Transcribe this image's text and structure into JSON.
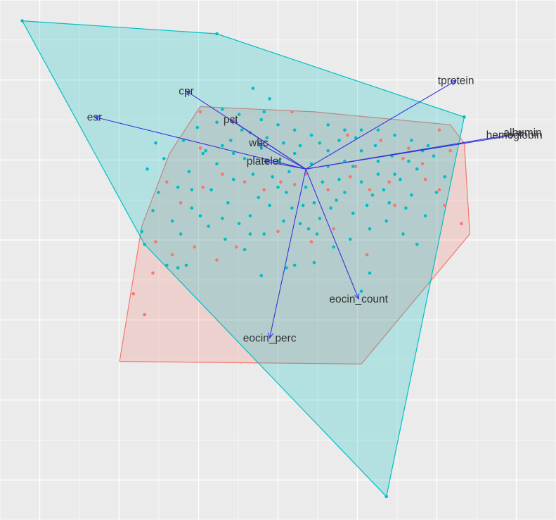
{
  "chart_data": {
    "type": "scatter",
    "subtype": "pca-biplot",
    "title": "",
    "xlabel": "",
    "ylabel": "",
    "xlim": [
      -1,
      1
    ],
    "ylim": [
      -1,
      1
    ],
    "grid": true,
    "legend": "none",
    "colors": {
      "background": "#EBEBEB",
      "grid": "#FFFFFF",
      "red_group": "#F8766D",
      "teal_group": "#00BFC4",
      "arrow": "#3333DD",
      "label": "#333333"
    },
    "origin": [
      0.1,
      0.35
    ],
    "loadings": [
      {
        "name": "cpr",
        "x": -0.33,
        "y": 0.65
      },
      {
        "name": "esr",
        "x": -0.66,
        "y": 0.55
      },
      {
        "name": "pct",
        "x": -0.17,
        "y": 0.54
      },
      {
        "name": "wbc",
        "x": -0.07,
        "y": 0.45
      },
      {
        "name": "platelet",
        "x": -0.05,
        "y": 0.38
      },
      {
        "name": "tprotein",
        "x": 0.64,
        "y": 0.69
      },
      {
        "name": "hemoglobin",
        "x": 0.85,
        "y": 0.48
      },
      {
        "name": "albumin",
        "x": 0.88,
        "y": 0.49
      },
      {
        "name": "eocin_count",
        "x": 0.29,
        "y": -0.15
      },
      {
        "name": "eocin_perc",
        "x": -0.03,
        "y": -0.3
      }
    ],
    "hulls": [
      {
        "group": "red",
        "points": [
          [
            -0.28,
            0.59
          ],
          [
            0.13,
            0.57
          ],
          [
            0.62,
            0.52
          ],
          [
            0.67,
            0.45
          ],
          [
            0.69,
            0.1
          ],
          [
            0.3,
            -0.4
          ],
          [
            -0.57,
            -0.39
          ],
          [
            -0.49,
            0.13
          ],
          [
            -0.39,
            0.41
          ]
        ]
      },
      {
        "group": "teal",
        "points": [
          [
            -0.92,
            0.92
          ],
          [
            -0.22,
            0.87
          ],
          [
            0.67,
            0.55
          ],
          [
            0.39,
            -0.91
          ],
          [
            -0.48,
            0.06
          ]
        ]
      }
    ],
    "series": [
      {
        "group": "red",
        "points": [
          [
            -0.28,
            0.57
          ],
          [
            0.05,
            0.57
          ],
          [
            0.25,
            0.48
          ],
          [
            0.37,
            0.46
          ],
          [
            0.47,
            0.43
          ],
          [
            0.52,
            0.37
          ],
          [
            0.58,
            0.5
          ],
          [
            0.62,
            0.42
          ],
          [
            0.6,
            0.21
          ],
          [
            0.66,
            0.14
          ],
          [
            0.58,
            0.27
          ],
          [
            0.53,
            0.31
          ],
          [
            0.42,
            0.21
          ],
          [
            0.33,
            0.27
          ],
          [
            0.26,
            0.32
          ],
          [
            0.18,
            0.27
          ],
          [
            0.1,
            0.33
          ],
          [
            0.06,
            0.29
          ],
          [
            0.01,
            0.3
          ],
          [
            -0.05,
            0.27
          ],
          [
            -0.12,
            0.3
          ],
          [
            -0.2,
            0.33
          ],
          [
            -0.27,
            0.28
          ],
          [
            -0.35,
            0.22
          ],
          [
            -0.4,
            0.3
          ],
          [
            -0.28,
            0.43
          ],
          [
            -0.44,
            0.07
          ],
          [
            -0.38,
            0.02
          ],
          [
            -0.3,
            0.05
          ],
          [
            -0.22,
            0.0
          ],
          [
            -0.15,
            0.05
          ],
          [
            0.0,
            0.11
          ],
          [
            0.12,
            0.07
          ],
          [
            0.2,
            0.12
          ],
          [
            0.32,
            0.02
          ],
          [
            -0.45,
            -0.05
          ],
          [
            -0.52,
            -0.13
          ],
          [
            -0.48,
            -0.21
          ],
          [
            0.28,
            0.36
          ],
          [
            0.4,
            0.3
          ],
          [
            0.45,
            0.39
          ]
        ]
      },
      {
        "group": "teal",
        "points": [
          [
            -0.92,
            0.92
          ],
          [
            -0.22,
            0.87
          ],
          [
            0.67,
            0.55
          ],
          [
            0.39,
            -0.91
          ],
          [
            -0.48,
            0.06
          ],
          [
            -0.09,
            0.66
          ],
          [
            -0.05,
            0.57
          ],
          [
            -0.03,
            0.62
          ],
          [
            -0.13,
            0.5
          ],
          [
            -0.17,
            0.46
          ],
          [
            -0.22,
            0.53
          ],
          [
            -0.29,
            0.51
          ],
          [
            -0.34,
            0.46
          ],
          [
            -0.41,
            0.39
          ],
          [
            -0.44,
            0.45
          ],
          [
            -0.47,
            0.35
          ],
          [
            -0.43,
            0.26
          ],
          [
            -0.45,
            0.19
          ],
          [
            -0.49,
            0.11
          ],
          [
            -0.38,
            0.15
          ],
          [
            -0.31,
            0.2
          ],
          [
            -0.24,
            0.27
          ],
          [
            -0.18,
            0.22
          ],
          [
            -0.1,
            0.17
          ],
          [
            -0.03,
            0.21
          ],
          [
            0.03,
            0.26
          ],
          [
            0.09,
            0.21
          ],
          [
            0.15,
            0.16
          ],
          [
            0.21,
            0.23
          ],
          [
            0.27,
            0.18
          ],
          [
            0.33,
            0.12
          ],
          [
            0.39,
            0.15
          ],
          [
            0.45,
            0.1
          ],
          [
            0.5,
            0.06
          ],
          [
            0.53,
            0.17
          ],
          [
            0.48,
            0.25
          ],
          [
            0.42,
            0.33
          ],
          [
            0.36,
            0.38
          ],
          [
            0.3,
            0.42
          ],
          [
            0.24,
            0.38
          ],
          [
            0.18,
            0.42
          ],
          [
            0.12,
            0.37
          ],
          [
            0.06,
            0.41
          ],
          [
            0.0,
            0.38
          ],
          [
            -0.06,
            0.43
          ],
          [
            -0.12,
            0.39
          ],
          [
            -0.09,
            0.33
          ],
          [
            -0.16,
            0.31
          ],
          [
            -0.22,
            0.37
          ],
          [
            -0.27,
            0.41
          ],
          [
            -0.32,
            0.34
          ],
          [
            -0.36,
            0.28
          ],
          [
            -0.25,
            0.13
          ],
          [
            -0.19,
            0.08
          ],
          [
            -0.12,
            0.04
          ],
          [
            -0.05,
            0.1
          ],
          [
            0.02,
            0.15
          ],
          [
            0.08,
            0.14
          ],
          [
            0.14,
            0.1
          ],
          [
            0.2,
            0.05
          ],
          [
            0.26,
            0.08
          ],
          [
            0.32,
            0.21
          ],
          [
            0.38,
            0.27
          ],
          [
            0.44,
            0.31
          ],
          [
            0.5,
            0.35
          ],
          [
            0.56,
            0.4
          ],
          [
            0.6,
            0.32
          ],
          [
            0.57,
            0.26
          ],
          [
            0.54,
            0.44
          ],
          [
            0.48,
            0.46
          ],
          [
            0.42,
            0.48
          ],
          [
            0.36,
            0.5
          ],
          [
            0.3,
            0.5
          ],
          [
            0.24,
            0.5
          ],
          [
            0.18,
            0.52
          ],
          [
            0.12,
            0.48
          ],
          [
            0.06,
            0.5
          ],
          [
            0.0,
            0.52
          ],
          [
            -0.06,
            0.54
          ],
          [
            -0.14,
            0.56
          ],
          [
            -0.2,
            0.58
          ],
          [
            -0.26,
            0.42
          ],
          [
            -0.31,
            0.27
          ],
          [
            -0.33,
            -0.02
          ],
          [
            -0.36,
            -0.03
          ],
          [
            -0.4,
            -0.02
          ],
          [
            0.33,
            -0.05
          ],
          [
            0.3,
            -0.12
          ],
          [
            -0.06,
            -0.06
          ],
          [
            0.03,
            -0.03
          ],
          [
            0.06,
            -0.02
          ],
          [
            0.13,
            -0.01
          ],
          [
            0.08,
            0.44
          ],
          [
            0.15,
            0.45
          ],
          [
            0.22,
            0.46
          ],
          [
            0.28,
            0.47
          ],
          [
            0.35,
            0.44
          ],
          [
            0.41,
            0.4
          ],
          [
            0.47,
            0.38
          ],
          [
            0.52,
            0.42
          ],
          [
            0.02,
            0.45
          ],
          [
            -0.04,
            0.47
          ],
          [
            -0.1,
            0.49
          ],
          [
            -0.16,
            0.41
          ],
          [
            -0.2,
            0.44
          ],
          [
            0.1,
            0.28
          ],
          [
            0.16,
            0.3
          ],
          [
            0.22,
            0.31
          ],
          [
            0.04,
            0.34
          ],
          [
            -0.02,
            0.32
          ],
          [
            0.46,
            0.2
          ],
          [
            0.4,
            0.22
          ],
          [
            0.34,
            0.25
          ],
          [
            0.19,
            0.2
          ],
          [
            0.24,
            0.26
          ],
          [
            0.13,
            0.22
          ],
          [
            -0.28,
            0.17
          ],
          [
            -0.35,
            0.1
          ],
          [
            -0.14,
            0.14
          ],
          [
            -0.07,
            0.24
          ],
          [
            0.05,
            0.2
          ],
          [
            0.11,
            0.12
          ],
          [
            0.3,
            0.3
          ],
          [
            0.36,
            0.33
          ],
          [
            0.0,
            0.28
          ],
          [
            -0.2,
            0.16
          ],
          [
            -0.1,
            0.1
          ],
          [
            0.18,
            0.36
          ],
          [
            0.27,
            0.36
          ]
        ]
      }
    ]
  }
}
